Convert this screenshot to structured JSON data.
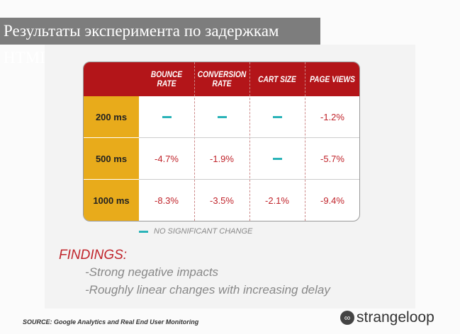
{
  "title": "Результаты эксперимента по задержкам HTML",
  "table": {
    "headers": [
      "BOUNCE RATE",
      "CONVERSION RATE",
      "CART SIZE",
      "PAGE VIEWS"
    ],
    "rows": [
      {
        "label": "200 ms",
        "values": [
          "—",
          "—",
          "—",
          "-1.2%"
        ]
      },
      {
        "label": "500 ms",
        "values": [
          "-4.7%",
          "-1.9%",
          "—",
          "-5.7%"
        ]
      },
      {
        "label": "1000 ms",
        "values": [
          "-8.3%",
          "-3.5%",
          "-2.1%",
          "-9.4%"
        ]
      }
    ]
  },
  "legend": "NO SIGNIFICANT CHANGE",
  "findings": {
    "heading": "FINDINGS:",
    "items": [
      "-Strong negative impacts",
      "-Roughly linear changes with increasing delay"
    ]
  },
  "source": "SOURCE: Google Analytics and Real End User Monitoring",
  "logo": "strangeloop",
  "colors": {
    "header": "#b31519",
    "row_label": "#e8ab1b",
    "value": "#c0232a",
    "no_change": "#2ab3b8"
  }
}
